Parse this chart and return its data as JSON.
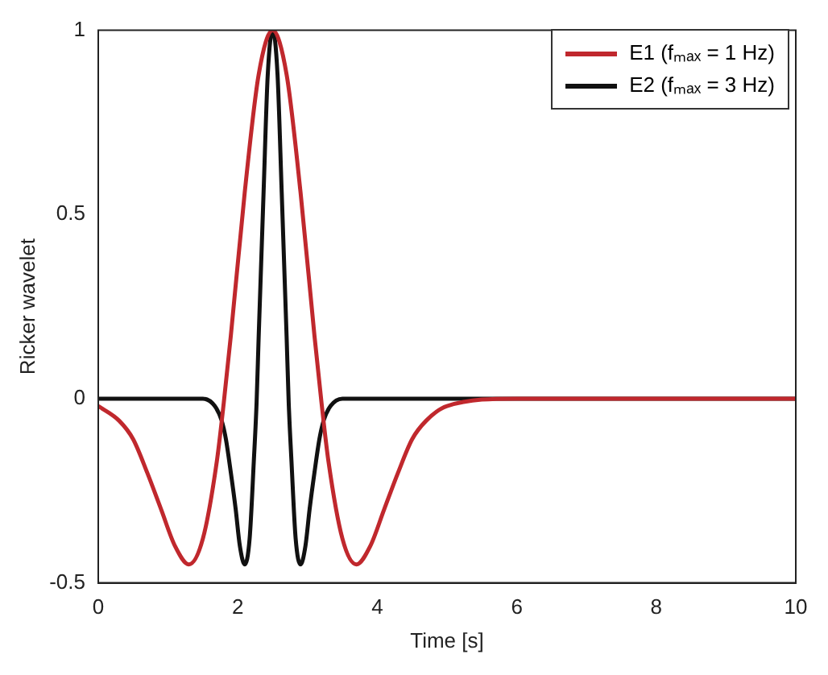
{
  "chart_data": {
    "type": "line",
    "xlabel": "Time [s]",
    "ylabel": "Ricker wavelet",
    "xlim": [
      0,
      10
    ],
    "xticks": [
      0,
      2,
      4,
      6,
      8,
      10
    ],
    "ylim": [
      -0.5,
      1
    ],
    "yticks": [
      -0.5,
      0,
      0.5,
      1
    ],
    "grid": false,
    "legend": "top right",
    "marker": "none",
    "line_style": "solid",
    "series": [
      {
        "name": "E1 (fₘₐₓ = 1 Hz)",
        "color": "#c0282d",
        "x": [
          0,
          0.3,
          0.5,
          0.7,
          0.9,
          1.1,
          1.3,
          1.5,
          1.7,
          1.8,
          1.9,
          2.1,
          2.3,
          2.5,
          2.7,
          2.9,
          3.1,
          3.2,
          3.3,
          3.5,
          3.7,
          3.9,
          4.1,
          4.3,
          4.5,
          4.7,
          5,
          6,
          10
        ],
        "values": [
          -0.02,
          -0.06,
          -0.11,
          -0.2,
          -0.3,
          -0.4,
          -0.45,
          -0.38,
          -0.17,
          -0.01,
          0.17,
          0.56,
          0.88,
          1,
          0.88,
          0.56,
          0.17,
          -0.01,
          -0.17,
          -0.38,
          -0.45,
          -0.4,
          -0.3,
          -0.2,
          -0.11,
          -0.06,
          -0.02,
          0,
          0
        ]
      },
      {
        "name": "E2 (fₘₐₓ = 3 Hz)",
        "color": "#111111",
        "x": [
          0,
          1.5,
          1.67,
          1.77,
          1.83,
          1.9,
          1.97,
          2.03,
          2.1,
          2.17,
          2.23,
          2.27,
          2.3,
          2.37,
          2.43,
          2.5,
          2.57,
          2.63,
          2.7,
          2.73,
          2.77,
          2.83,
          2.9,
          2.97,
          3.03,
          3.1,
          3.17,
          3.23,
          3.33,
          3.5,
          10
        ],
        "values": [
          0,
          0,
          -0.02,
          -0.06,
          -0.11,
          -0.2,
          -0.3,
          -0.4,
          -0.45,
          -0.38,
          -0.17,
          -0.01,
          0.17,
          0.56,
          0.88,
          1,
          0.88,
          0.56,
          0.17,
          -0.01,
          -0.17,
          -0.38,
          -0.45,
          -0.4,
          -0.3,
          -0.2,
          -0.11,
          -0.06,
          -0.02,
          0,
          0
        ]
      }
    ]
  }
}
